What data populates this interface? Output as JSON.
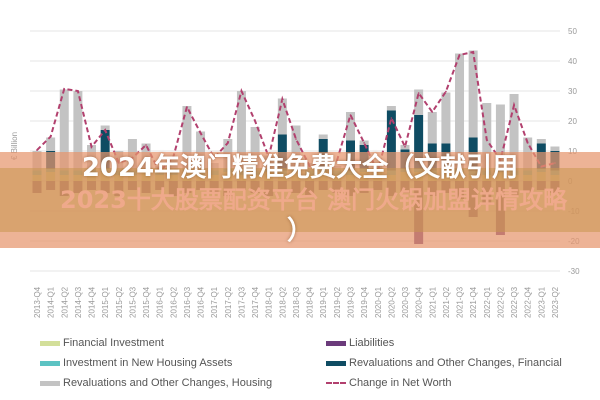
{
  "chart_data": {
    "type": "bar",
    "ylabel": "€ Billion",
    "ylim": [
      -30,
      50
    ],
    "yticks": [
      50,
      40,
      30,
      20,
      10,
      0,
      -10,
      -20,
      -30
    ],
    "grid": true,
    "legend_position": "bottom",
    "categories": [
      "2013-Q4",
      "2014-Q1",
      "2014-Q2",
      "2014-Q3",
      "2014-Q4",
      "2015-Q1",
      "2015-Q2",
      "2015-Q3",
      "2015-Q4",
      "2016-Q1",
      "2016-Q2",
      "2016-Q3",
      "2016-Q4",
      "2017-Q1",
      "2017-Q2",
      "2017-Q3",
      "2017-Q4",
      "2018-Q1",
      "2018-Q2",
      "2018-Q3",
      "2018-Q4",
      "2019-Q1",
      "2019-Q2",
      "2019-Q3",
      "2019-Q4",
      "2020-Q1",
      "2020-Q2",
      "2020-Q3",
      "2020-Q4",
      "2021-Q1",
      "2021-Q2",
      "2021-Q3",
      "2021-Q4",
      "2022-Q1",
      "2022-Q2",
      "2022-Q3",
      "2022-Q4",
      "2023-Q1",
      "2023-Q2"
    ],
    "series": [
      {
        "name": "Financial Investment",
        "type": "bar",
        "color": "#d3df9a",
        "values": [
          2,
          3,
          2,
          2,
          3,
          3,
          2,
          2,
          3,
          2,
          2,
          3,
          2,
          2,
          3,
          2,
          2,
          3,
          2,
          3,
          2,
          3,
          2,
          2,
          3,
          3,
          2,
          3,
          3,
          2,
          3,
          3,
          2,
          2,
          3,
          2,
          2,
          3,
          2
        ]
      },
      {
        "name": "Investment in New Housing Assets",
        "type": "bar",
        "color": "#5cc3c3",
        "values": [
          1.5,
          1,
          1.5,
          1.5,
          1,
          1,
          1.5,
          1.5,
          1,
          1.5,
          1.5,
          1,
          1.5,
          1.5,
          1,
          1.5,
          1.5,
          1,
          1.5,
          1,
          1.5,
          1,
          1.5,
          1.5,
          1,
          1,
          1.5,
          1,
          1,
          1.5,
          1,
          1,
          1.5,
          1.5,
          1,
          1.5,
          1.5,
          1,
          1.5
        ]
      },
      {
        "name": "Revaluations and Other Changes, Financial",
        "type": "bar",
        "color": "#0f4c63",
        "values": [
          0,
          6,
          0,
          0,
          0,
          13,
          0,
          0,
          0,
          0,
          0,
          0,
          0,
          0,
          0,
          0,
          0,
          0,
          12,
          0,
          0,
          10,
          0,
          10,
          8,
          0,
          20,
          6.5,
          18,
          9,
          8.5,
          0,
          11,
          0,
          0,
          0,
          0,
          8.5,
          6.5
        ]
      },
      {
        "name": "Revaluations and Other Changes, Housing",
        "type": "bar",
        "color": "#c3c3c3",
        "values": [
          6.5,
          4.5,
          27,
          26.5,
          8,
          1.5,
          6.5,
          10.5,
          8.5,
          1.5,
          4.5,
          21,
          13,
          2.5,
          10,
          26.5,
          14.5,
          4.5,
          12,
          14.5,
          2.5,
          1.5,
          1.5,
          9.5,
          1.5,
          1.5,
          1.5,
          1.5,
          8.5,
          10.5,
          17,
          38.5,
          29,
          22.5,
          21.5,
          25.5,
          11,
          1.5,
          1.5
        ]
      },
      {
        "name": "Liabilities",
        "type": "bar",
        "color": "#6b3b7b",
        "values": [
          -4,
          -3,
          -5,
          -4,
          -3,
          -4,
          -5,
          -3,
          -4,
          -3,
          -5,
          -4,
          -3,
          -4,
          -5,
          -3,
          -4,
          -5,
          -3,
          -4,
          -5,
          -3,
          -4,
          -5,
          -4,
          -3,
          -5,
          -4,
          -21,
          -5,
          -4,
          -6,
          -12,
          -8,
          -18,
          -5,
          -4,
          -3,
          -4
        ]
      },
      {
        "name": "Change in Net Worth",
        "type": "line",
        "color": "#b2406e",
        "values": [
          10.3,
          14.8,
          30.7,
          30,
          11.4,
          17,
          6,
          7.7,
          12,
          3,
          8,
          24.7,
          16,
          7.7,
          12.7,
          30,
          20,
          8,
          27.3,
          14,
          5,
          6,
          6.7,
          22,
          12.7,
          3,
          21,
          11.4,
          29.3,
          23,
          29.8,
          42,
          43,
          13.7,
          7,
          25.3,
          12.7,
          4.8,
          6
        ]
      }
    ]
  },
  "legend": [
    {
      "label": "Financial Investment",
      "color": "#d3df9a",
      "kind": "bar"
    },
    {
      "label": "Liabilities",
      "color": "#6b3b7b",
      "kind": "bar"
    },
    {
      "label": "Investment in New Housing Assets",
      "color": "#5cc3c3",
      "kind": "bar"
    },
    {
      "label": "Revaluations and Other Changes, Financial",
      "color": "#0f4c63",
      "kind": "bar"
    },
    {
      "label": "Revaluations and Other Changes, Housing",
      "color": "#c3c3c3",
      "kind": "bar"
    },
    {
      "label": "Change in Net Worth",
      "color": "#b2406e",
      "kind": "dashed-line"
    }
  ],
  "overlay": {
    "title_line1": "2024年澳门精准免费大全（文献引用",
    "title_line2": "）",
    "background_text": "2023十大股票配资平台 澳门火锅加盟详情攻略"
  }
}
